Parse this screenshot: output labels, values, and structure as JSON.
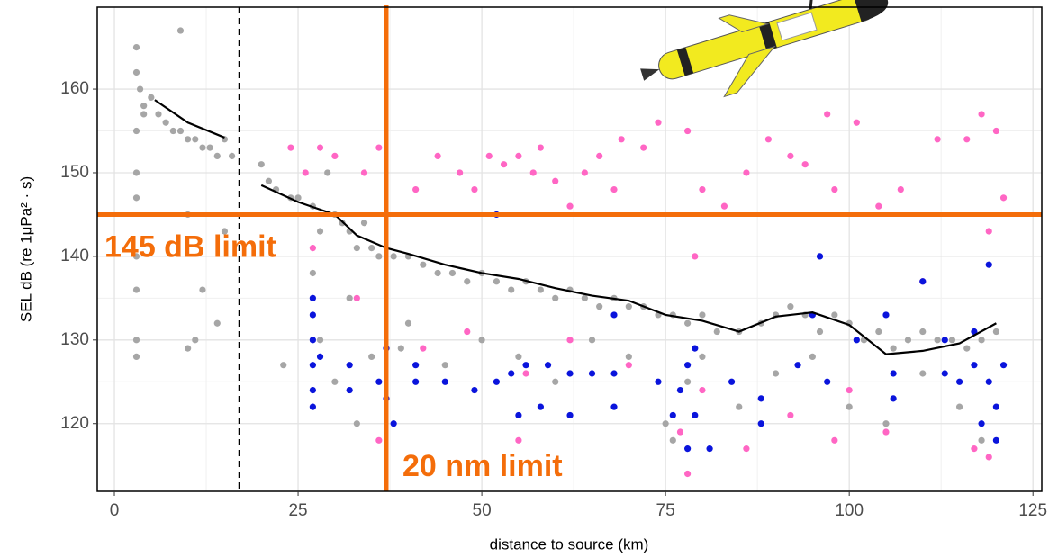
{
  "chart_data": {
    "type": "scatter",
    "x_label": "distance to source (km)",
    "y_label": "SEL dB (re 1μPa² · s)",
    "xlim": [
      -2.33,
      126.2
    ],
    "ylim": [
      111.9,
      169.8
    ],
    "xticks": [
      0,
      25,
      50,
      75,
      100,
      125
    ],
    "yticks": [
      120,
      130,
      140,
      150,
      160
    ],
    "grid": true,
    "series": [
      {
        "type": "scatter",
        "color": "#a6a6a6",
        "x": [
          3,
          3,
          3.5,
          4,
          3,
          4,
          5,
          6,
          7,
          8,
          9,
          10,
          11,
          12,
          13,
          14,
          15,
          3,
          3,
          3,
          3,
          3,
          3,
          9,
          10,
          12,
          14,
          11,
          10,
          16,
          15,
          20,
          21,
          22,
          24,
          25,
          27,
          28,
          30,
          31,
          32,
          33,
          34,
          35,
          36,
          38,
          40,
          42,
          44,
          46,
          48,
          50,
          52,
          54,
          56,
          58,
          60,
          62,
          64,
          66,
          68,
          70,
          72,
          74,
          76,
          78,
          80,
          82,
          85,
          88,
          90,
          92,
          94,
          96,
          98,
          100,
          102,
          104,
          106,
          108,
          110,
          112,
          114,
          116,
          118,
          120,
          27,
          28,
          30,
          32,
          35,
          40,
          45,
          50,
          55,
          60,
          65,
          70,
          75,
          76,
          78,
          80,
          85,
          90,
          95,
          100,
          105,
          110,
          115,
          118,
          23,
          29,
          33,
          39
        ],
        "values": [
          165,
          162,
          160,
          158,
          155,
          157,
          159,
          157,
          156,
          155,
          155,
          154,
          154,
          153,
          153,
          152,
          154,
          150,
          147,
          140,
          136,
          130,
          128,
          167,
          145,
          136,
          132,
          130,
          129,
          152,
          143,
          151,
          149,
          148,
          147,
          147,
          146,
          143,
          145,
          144,
          143,
          141,
          144,
          141,
          140,
          140,
          140,
          139,
          138,
          138,
          137,
          138,
          137,
          136,
          137,
          136,
          135,
          136,
          135,
          134,
          135,
          134,
          134,
          133,
          133,
          132,
          133,
          131,
          131,
          132,
          133,
          134,
          133,
          131,
          133,
          132,
          130,
          131,
          129,
          130,
          131,
          130,
          130,
          129,
          130,
          131,
          138,
          130,
          125,
          135,
          128,
          132,
          127,
          130,
          128,
          125,
          130,
          128,
          120,
          118,
          125,
          128,
          122,
          126,
          128,
          122,
          120,
          126,
          122,
          118,
          127,
          150,
          120,
          129
        ]
      },
      {
        "type": "scatter",
        "color": "#ff66c4",
        "x": [
          24,
          26,
          28,
          30,
          34,
          36,
          41,
          44,
          47,
          49,
          51,
          53,
          55,
          57,
          58,
          60,
          62,
          64,
          66,
          68,
          69,
          72,
          74,
          78,
          80,
          79,
          83,
          86,
          89,
          92,
          94,
          97,
          98,
          101,
          104,
          107,
          110,
          112,
          116,
          118,
          119,
          120,
          121,
          27,
          33,
          42,
          48,
          56,
          62,
          70,
          77,
          80,
          86,
          92,
          100,
          105,
          117,
          119,
          36,
          55,
          78,
          98
        ],
        "values": [
          153,
          150,
          153,
          152,
          150,
          153,
          148,
          152,
          150,
          148,
          152,
          151,
          152,
          150,
          153,
          149,
          146,
          150,
          152,
          148,
          154,
          153,
          156,
          155,
          148,
          140,
          146,
          150,
          154,
          152,
          151,
          157,
          148,
          156,
          146,
          148,
          137,
          154,
          154,
          157,
          143,
          155,
          147,
          141,
          135,
          129,
          131,
          126,
          130,
          127,
          119,
          124,
          117,
          121,
          124,
          119,
          117,
          116,
          118,
          118,
          114,
          118
        ]
      },
      {
        "type": "scatter",
        "color": "#0a14dc",
        "x": [
          27,
          27,
          27,
          27,
          27,
          27,
          28,
          32,
          32,
          36,
          37,
          37,
          38,
          41,
          41,
          45,
          49,
          52,
          54,
          55,
          56,
          58,
          59,
          62,
          62,
          65,
          68,
          68,
          68,
          74,
          76,
          77,
          78,
          78,
          79,
          79,
          81,
          84,
          88,
          88,
          93,
          95,
          97,
          101,
          105,
          106,
          106,
          110,
          113,
          113,
          115,
          117,
          117,
          118,
          119,
          119,
          120,
          120,
          121,
          52,
          96
        ],
        "values": [
          135,
          133,
          130,
          127,
          124,
          122,
          128,
          127,
          124,
          125,
          123,
          129,
          120,
          127,
          125,
          125,
          124,
          125,
          126,
          121,
          127,
          122,
          127,
          126,
          121,
          126,
          126,
          122,
          133,
          125,
          121,
          124,
          117,
          127,
          129,
          121,
          117,
          125,
          123,
          120,
          127,
          133,
          125,
          130,
          133,
          126,
          123,
          137,
          126,
          130,
          125,
          127,
          131,
          120,
          125,
          139,
          122,
          118,
          127,
          145,
          140
        ]
      },
      {
        "type": "line",
        "color": "#000000",
        "x": [
          5.5,
          10,
          15,
          17.5,
          20,
          25,
          30,
          33,
          37,
          40,
          45,
          50,
          55,
          60,
          65,
          70,
          75,
          80,
          85,
          90,
          95,
          100,
          105,
          110,
          115,
          120
        ],
        "values": [
          158.7,
          156,
          154.2,
          null,
          148.5,
          146.5,
          145,
          142.5,
          141,
          140.3,
          139,
          138,
          137.3,
          136.2,
          135.3,
          134.7,
          133,
          132.3,
          131,
          132.8,
          133.3,
          131.8,
          128.3,
          128.7,
          129.6,
          132
        ]
      }
    ],
    "vlines": [
      {
        "value": 17,
        "color": "#000000",
        "dashed": true
      },
      {
        "value": 37,
        "color": "#f46d0a",
        "label": "20 nm limit"
      }
    ],
    "hlines": [
      {
        "value": 145,
        "color": "#f46d0a",
        "label": "145 dB limit"
      }
    ]
  }
}
